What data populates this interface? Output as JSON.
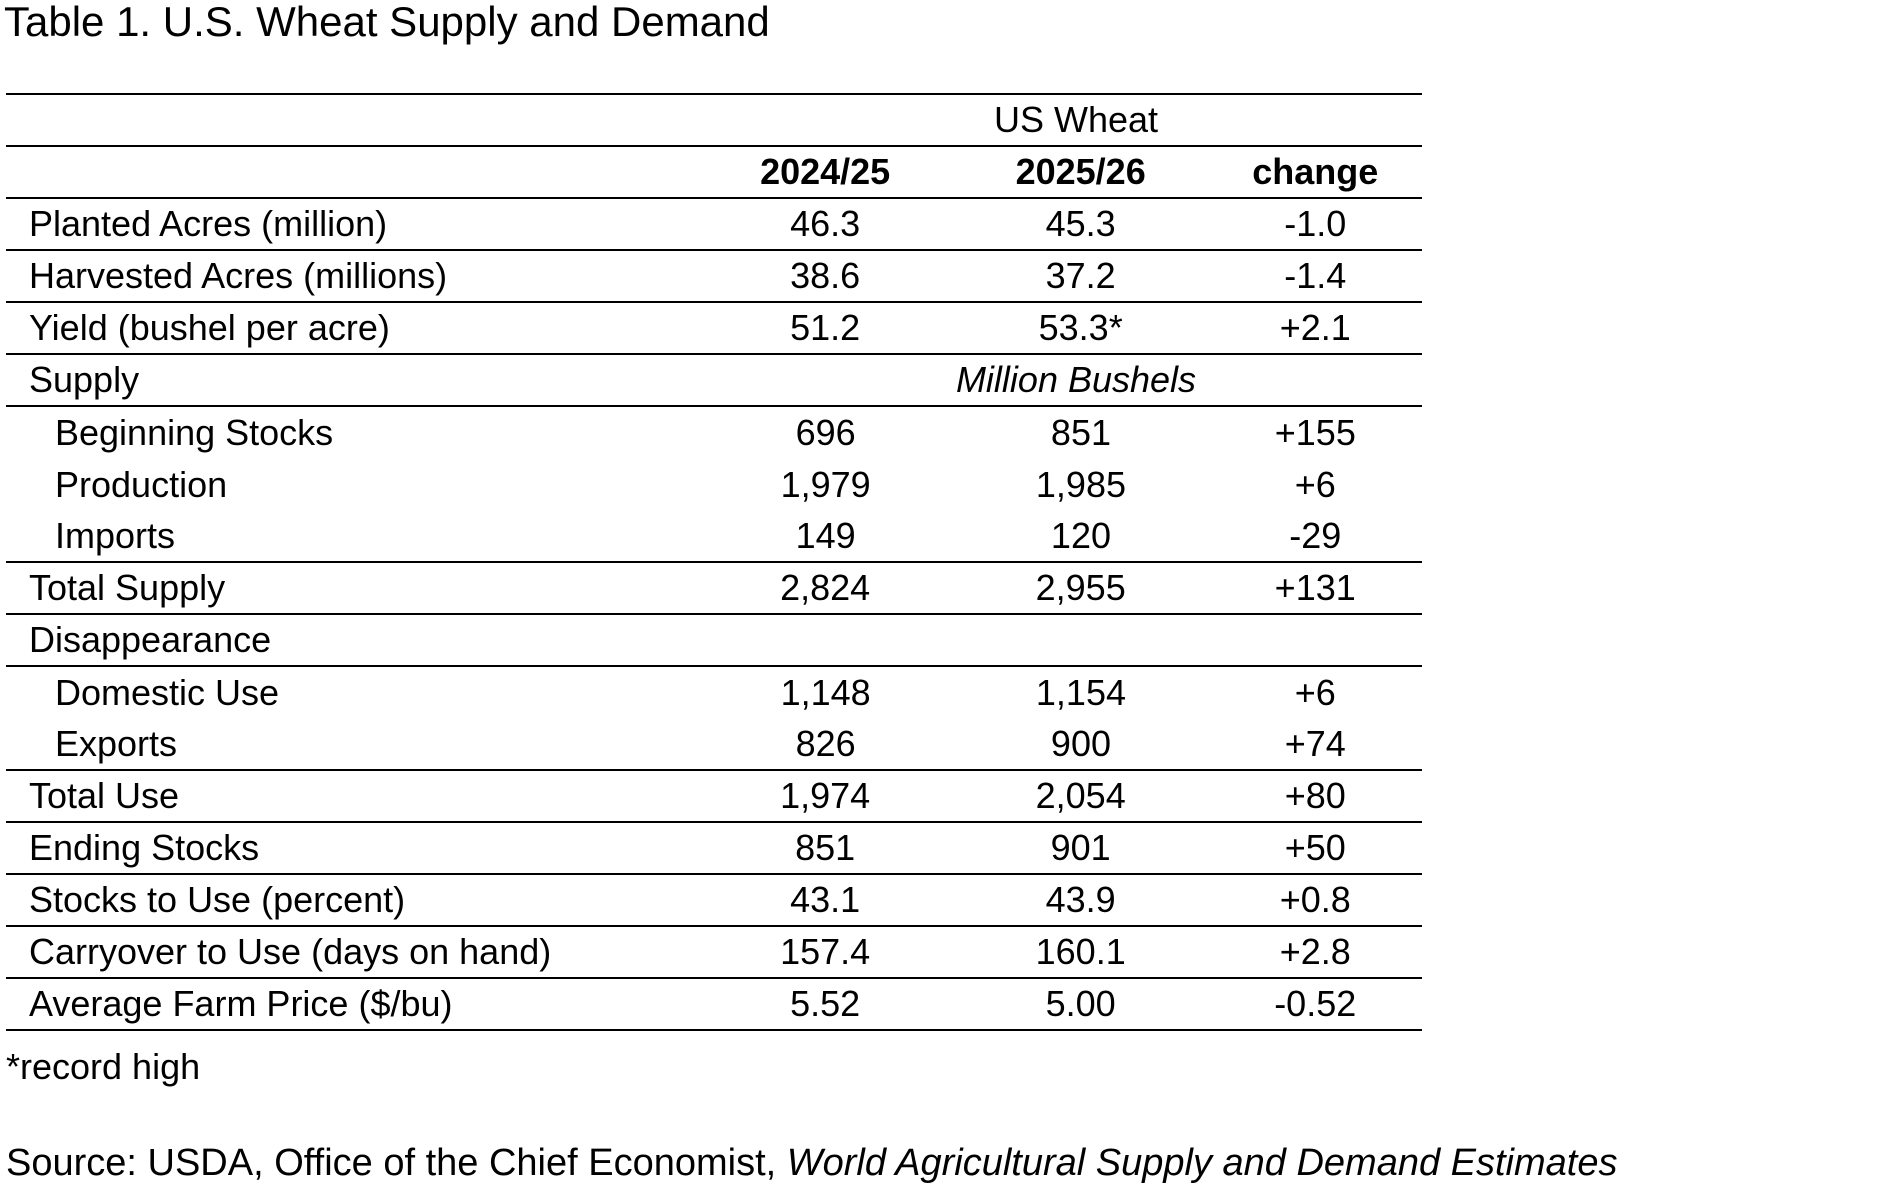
{
  "title": "Table 1. U.S. Wheat Supply and Demand",
  "group_header": "US Wheat",
  "columns": [
    "2024/25",
    "2025/26",
    "change"
  ],
  "rows": [
    {
      "label": "Planted Acres (million)",
      "v1": "46.3",
      "v2": "45.3",
      "chg": "-1.0"
    },
    {
      "label": "Harvested Acres (millions)",
      "v1": "38.6",
      "v2": "37.2",
      "chg": "-1.4"
    },
    {
      "label": "Yield (bushel per acre)",
      "v1": "51.2",
      "v2": "53.3*",
      "chg": "+2.1"
    },
    {
      "label": "Supply",
      "unit": "Million Bushels"
    },
    {
      "label": "Beginning Stocks",
      "v1": "696",
      "v2": "851",
      "chg": "+155"
    },
    {
      "label": "Production",
      "v1": "1,979",
      "v2": "1,985",
      "chg": "+6"
    },
    {
      "label": "Imports",
      "v1": "149",
      "v2": "120",
      "chg": "-29"
    },
    {
      "label": "Total Supply",
      "v1": "2,824",
      "v2": "2,955",
      "chg": "+131"
    },
    {
      "label": "Disappearance"
    },
    {
      "label": "Domestic Use",
      "v1": "1,148",
      "v2": "1,154",
      "chg": "+6"
    },
    {
      "label": "Exports",
      "v1": "826",
      "v2": "900",
      "chg": "+74"
    },
    {
      "label": "Total Use",
      "v1": "1,974",
      "v2": "2,054",
      "chg": "+80"
    },
    {
      "label": "Ending Stocks",
      "v1": "851",
      "v2": "901",
      "chg": "+50"
    },
    {
      "label": "Stocks to Use (percent)",
      "v1": "43.1",
      "v2": "43.9",
      "chg": "+0.8"
    },
    {
      "label": "Carryover to Use (days on hand)",
      "v1": "157.4",
      "v2": "160.1",
      "chg": "+2.8"
    },
    {
      "label": "Average Farm Price ($/bu)",
      "v1": "5.52",
      "v2": "5.00",
      "chg": "-0.52"
    }
  ],
  "footnote": "*record high",
  "source": {
    "prefix": "Source: USDA, Office of the Chief Economist, ",
    "title": "World Agricultural Supply and Demand Estimates"
  }
}
